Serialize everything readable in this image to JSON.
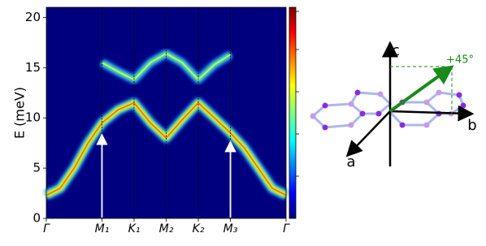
{
  "chart_data": {
    "type": "spectral-map",
    "ylabel": "E (meV)",
    "xlim": [
      0,
      4.309
    ],
    "ylim": [
      0,
      21
    ],
    "xticks": [
      {
        "value": 0,
        "label": "Γ"
      },
      {
        "value": 1,
        "label": "M₁"
      },
      {
        "value": 1.577,
        "label": "K₁"
      },
      {
        "value": 2.155,
        "label": "M₂"
      },
      {
        "value": 2.732,
        "label": "K₂"
      },
      {
        "value": 3.309,
        "label": "M₃"
      },
      {
        "value": 4.309,
        "label": "Γ"
      }
    ],
    "yticks": [
      0,
      5,
      10,
      15,
      20
    ],
    "series": [
      {
        "x": [
          0,
          0.25,
          0.5,
          0.75,
          1,
          1.29,
          1.577,
          1.87,
          2.155,
          2.44,
          2.732,
          3.02,
          3.309,
          3.56,
          3.81,
          4.06,
          4.309
        ],
        "values": [
          2.3,
          3,
          5,
          7.5,
          9.5,
          10.8,
          11.5,
          9.5,
          8,
          9.8,
          11.5,
          10,
          8.5,
          7,
          5,
          3,
          2.3
        ]
      },
      {
        "x": [
          1,
          1.29,
          1.577,
          1.87,
          2.155,
          2.44,
          2.732,
          3.02,
          3.309
        ],
        "values": [
          15.5,
          14.6,
          13.8,
          15.5,
          16.4,
          15.5,
          13.8,
          15.3,
          16.3
        ]
      }
    ],
    "arrows": [
      {
        "x": 1,
        "y": 8.2
      },
      {
        "x": 3.309,
        "y": 7.5
      }
    ]
  },
  "diagram": {
    "axis_labels": [
      "a",
      "b",
      "c"
    ],
    "angle_label": "+45$^\\circ$"
  }
}
